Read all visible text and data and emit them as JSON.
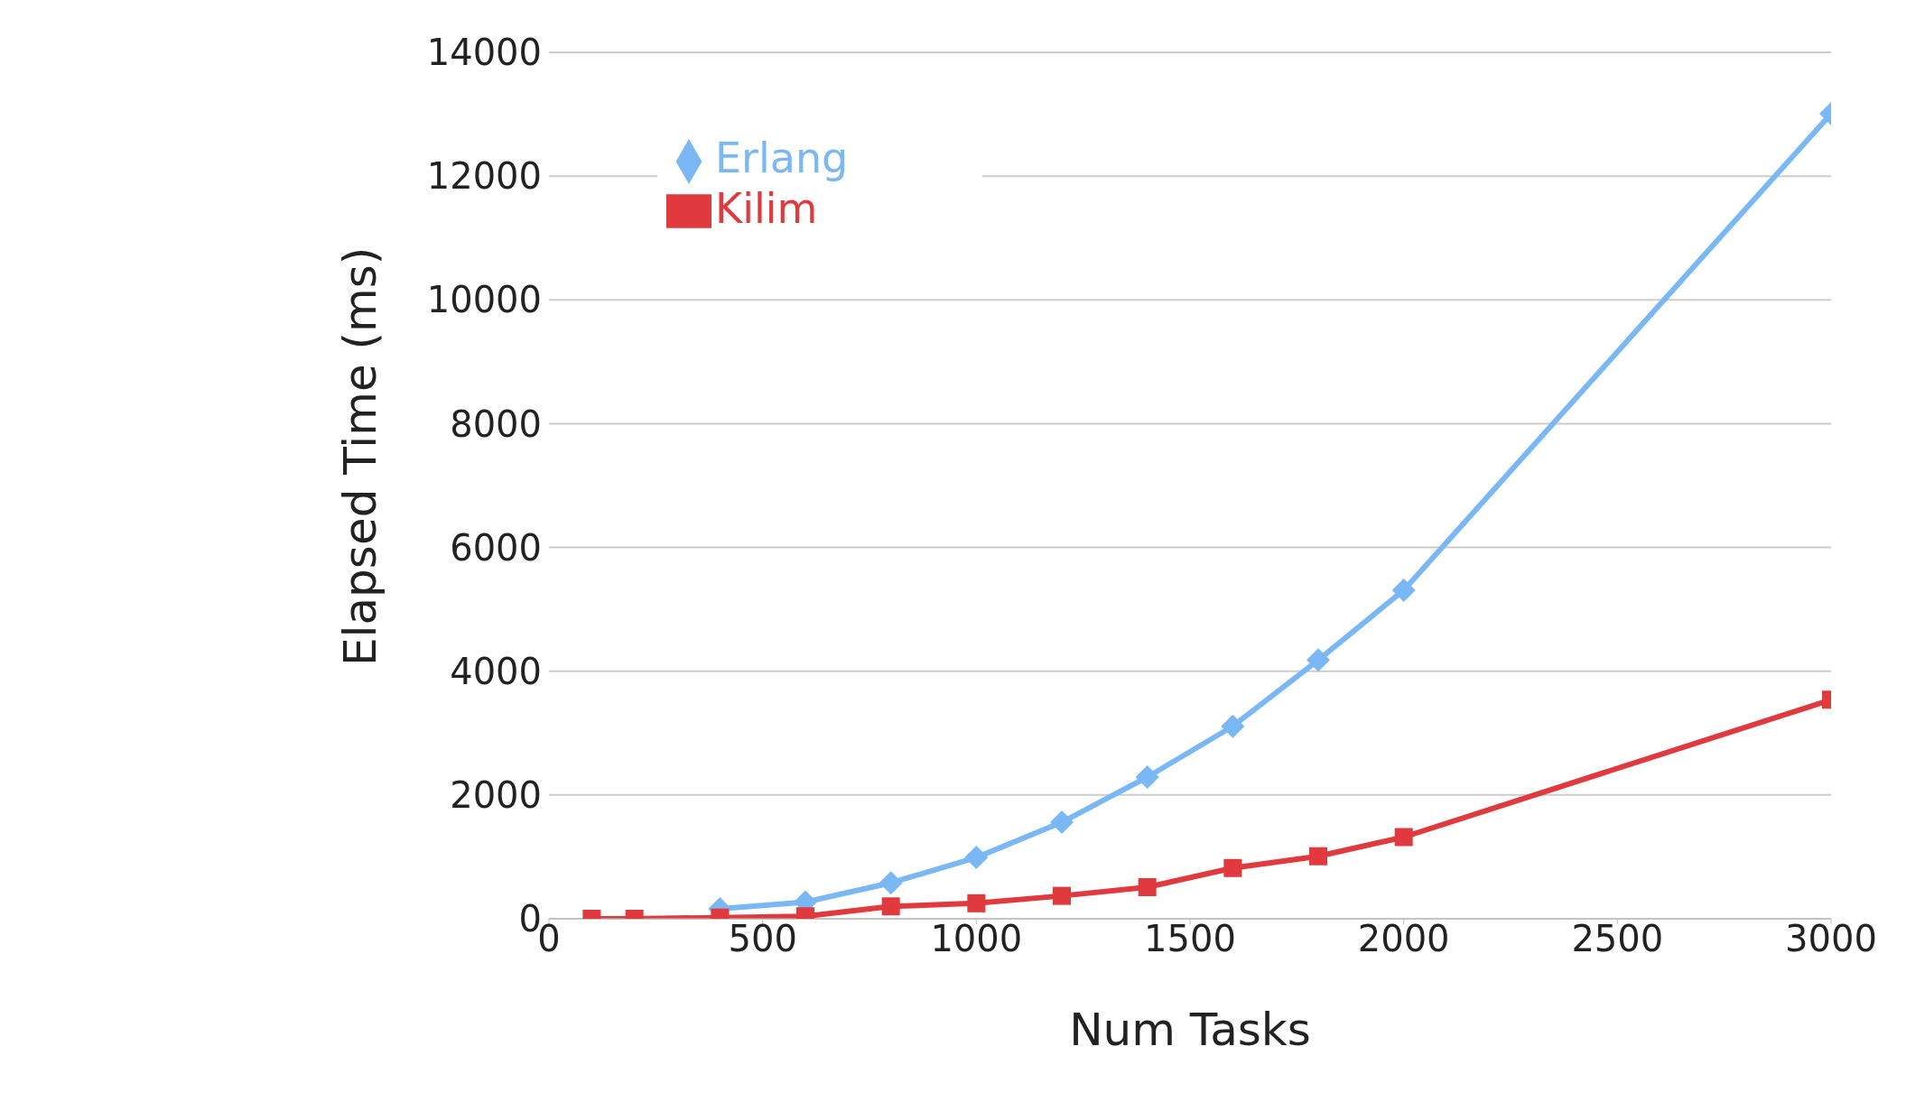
{
  "chart_data": {
    "type": "line",
    "xlabel": "Num Tasks",
    "ylabel": "Elapsed Time (ms)",
    "x": [
      100,
      200,
      400,
      600,
      800,
      1000,
      1200,
      1400,
      1600,
      1800,
      2000,
      3000
    ],
    "xlim": [
      0,
      3000
    ],
    "xticks": [
      0,
      500,
      1000,
      1500,
      2000,
      2500,
      3000
    ],
    "ylim": [
      0,
      14000
    ],
    "yticks": [
      0,
      2000,
      4000,
      6000,
      8000,
      10000,
      12000,
      14000
    ],
    "grid": "y",
    "legend": "top left",
    "line_style": "solid",
    "series": [
      {
        "name": "Erlang",
        "color": "#7ab8f5",
        "marker": "diamond",
        "values": [
          null,
          null,
          160,
          270,
          580,
          990,
          1560,
          2290,
          3110,
          4180,
          5310,
          13010
        ]
      },
      {
        "name": "Kilim",
        "color": "#e03a3e",
        "marker": "square",
        "values": [
          0,
          0,
          20,
          40,
          200,
          250,
          370,
          510,
          820,
          1010,
          1320,
          3540
        ]
      }
    ]
  }
}
